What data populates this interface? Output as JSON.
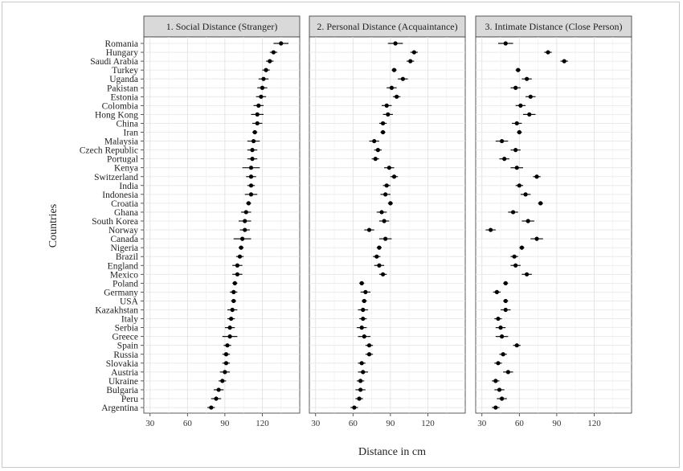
{
  "chart_data": {
    "type": "scatter",
    "style": "dot-and-whisker, faceted",
    "xlabel": "Distance in cm",
    "ylabel": "Countries",
    "xlim": [
      25,
      150
    ],
    "xticks": [
      30,
      60,
      90,
      120
    ],
    "grid": true,
    "countries": [
      "Romania",
      "Hungary",
      "Saudi Arabia",
      "Turkey",
      "Uganda",
      "Pakistan",
      "Estonia",
      "Colombia",
      "Hong Kong",
      "China",
      "Iran",
      "Malaysia",
      "Czech Republic",
      "Portugal",
      "Kenya",
      "Switzerland",
      "India",
      "Indonesia",
      "Croatia",
      "Ghana",
      "South Korea",
      "Norway",
      "Canada",
      "Nigeria",
      "Brazil",
      "England",
      "Mexico",
      "Poland",
      "Germany",
      "USA",
      "Kazakhstan",
      "Italy",
      "Serbia",
      "Greece",
      "Spain",
      "Russia",
      "Slovakia",
      "Austria",
      "Ukraine",
      "Bulgaria",
      "Peru",
      "Argentina"
    ],
    "panels": [
      {
        "title": "1. Social Distance (Stranger)",
        "values": [
          135,
          129,
          126,
          123,
          121,
          120,
          119,
          117,
          116,
          116,
          114,
          113,
          112,
          112,
          111,
          111,
          111,
          111,
          109,
          107,
          106,
          106,
          104,
          103,
          102,
          100,
          100,
          98,
          97,
          97,
          96,
          95,
          94,
          94,
          92,
          91,
          91,
          90,
          88,
          85,
          83,
          79
        ],
        "err": [
          6,
          3,
          3,
          3,
          4,
          4,
          4,
          4,
          5,
          4,
          2,
          5,
          4,
          4,
          7,
          4,
          3,
          5,
          2,
          4,
          5,
          4,
          7,
          2,
          3,
          4,
          4,
          2,
          3,
          2,
          4,
          3,
          4,
          6,
          3,
          3,
          3,
          4,
          3,
          4,
          4,
          3
        ]
      },
      {
        "title": "2. Personal Distance (Acquaintance)",
        "values": [
          94,
          109,
          106,
          93,
          100,
          91,
          95,
          87,
          88,
          84,
          84,
          77,
          80,
          78,
          89,
          93,
          87,
          86,
          90,
          83,
          85,
          73,
          86,
          81,
          79,
          81,
          84,
          67,
          70,
          69,
          68,
          68,
          67,
          69,
          73,
          73,
          67,
          68,
          66,
          66,
          65,
          61
        ],
        "err": [
          6,
          3,
          3,
          2,
          4,
          4,
          3,
          4,
          4,
          3,
          2,
          4,
          3,
          3,
          4,
          3,
          3,
          4,
          2,
          4,
          4,
          4,
          5,
          2,
          3,
          4,
          3,
          2,
          4,
          2,
          4,
          3,
          4,
          5,
          3,
          3,
          3,
          4,
          3,
          4,
          3,
          3
        ]
      },
      {
        "title": "3. Intimate Distance (Close Person)",
        "values": [
          49,
          83,
          96,
          59,
          66,
          57,
          69,
          61,
          68,
          58,
          60,
          46,
          57,
          48,
          58,
          74,
          60,
          65,
          77,
          55,
          67,
          37,
          74,
          62,
          56,
          57,
          66,
          49,
          42,
          49,
          49,
          43,
          45,
          46,
          58,
          47,
          43,
          51,
          41,
          44,
          46,
          41
        ],
        "err": [
          6,
          3,
          3,
          2,
          4,
          4,
          4,
          4,
          5,
          4,
          2,
          5,
          4,
          4,
          5,
          3,
          3,
          4,
          2,
          4,
          5,
          4,
          5,
          2,
          3,
          4,
          4,
          2,
          3,
          2,
          4,
          3,
          4,
          5,
          3,
          3,
          3,
          4,
          3,
          4,
          4,
          3
        ]
      }
    ]
  }
}
